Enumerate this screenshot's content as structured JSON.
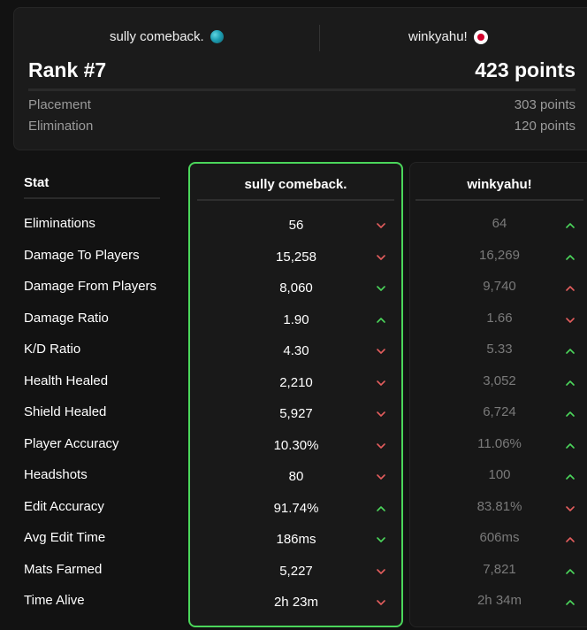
{
  "summary": {
    "player1": "sully comeback.",
    "player2": "winkyahu!",
    "rank": "Rank #7",
    "points": "423 points",
    "placement_label": "Placement",
    "placement_value": "303 points",
    "elimination_label": "Elimination",
    "elimination_value": "120 points"
  },
  "table": {
    "stat_header": "Stat",
    "col1_header": "sully comeback.",
    "col2_header": "winkyahu!",
    "colors": {
      "up": "#4bd65b",
      "down": "#e35d5d",
      "highlight": "#4bd65b"
    },
    "rows": [
      {
        "stat": "Eliminations",
        "v1": "56",
        "a1": "down",
        "v2": "64",
        "a2": "up"
      },
      {
        "stat": "Damage To Players",
        "v1": "15,258",
        "a1": "down",
        "v2": "16,269",
        "a2": "up"
      },
      {
        "stat": "Damage From Players",
        "v1": "8,060",
        "a1": "down-good",
        "v2": "9,740",
        "a2": "up-bad"
      },
      {
        "stat": "Damage Ratio",
        "v1": "1.90",
        "a1": "up",
        "v2": "1.66",
        "a2": "down"
      },
      {
        "stat": "K/D Ratio",
        "v1": "4.30",
        "a1": "down",
        "v2": "5.33",
        "a2": "up"
      },
      {
        "stat": "Health Healed",
        "v1": "2,210",
        "a1": "down",
        "v2": "3,052",
        "a2": "up"
      },
      {
        "stat": "Shield Healed",
        "v1": "5,927",
        "a1": "down",
        "v2": "6,724",
        "a2": "up"
      },
      {
        "stat": "Player Accuracy",
        "v1": "10.30%",
        "a1": "down",
        "v2": "11.06%",
        "a2": "up"
      },
      {
        "stat": "Headshots",
        "v1": "80",
        "a1": "down",
        "v2": "100",
        "a2": "up"
      },
      {
        "stat": "Edit Accuracy",
        "v1": "91.74%",
        "a1": "up",
        "v2": "83.81%",
        "a2": "down"
      },
      {
        "stat": "Avg Edit Time",
        "v1": "186ms",
        "a1": "down-good",
        "v2": "606ms",
        "a2": "up-bad"
      },
      {
        "stat": "Mats Farmed",
        "v1": "5,227",
        "a1": "down",
        "v2": "7,821",
        "a2": "up"
      },
      {
        "stat": "Time Alive",
        "v1": "2h 23m",
        "a1": "down",
        "v2": "2h 34m",
        "a2": "up"
      }
    ]
  }
}
